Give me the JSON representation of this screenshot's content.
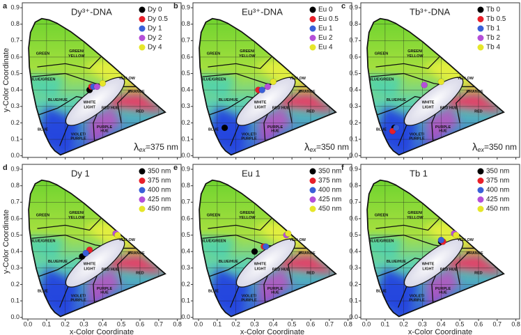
{
  "region_labels": [
    "GREEN",
    "GREEN/",
    "YELLOW",
    "YELLOW",
    "ORANGE",
    "BLUE/GREEN",
    "BLUE/HUE",
    "WHITE",
    "LIGHT",
    "RED HUE",
    "RED",
    "BLUE",
    "VIOLET/",
    "PURPLE",
    "PURPLE",
    "HUE"
  ],
  "chart_data": [
    {
      "type": "scatter",
      "label": "a",
      "title": "Dy³⁺-DNA",
      "ylabel": "y-Color Coordinate",
      "annotation": {
        "symbol": "λ",
        "subscript": "ex",
        "text": "=375 nm"
      },
      "xlim": [
        -0.03,
        0.82
      ],
      "ylim": [
        -0.01,
        0.93
      ],
      "xtick_labels": false,
      "xticks": [
        {
          "value": 0,
          "label": "0.0"
        },
        0.1,
        0.2,
        0.3,
        0.4,
        0.5,
        0.6,
        0.7,
        0.8
      ],
      "yticks": [
        {
          "value": 0,
          "label": "0.0"
        },
        0.1,
        0.2,
        0.3,
        0.4,
        0.5,
        0.6,
        0.7,
        0.8,
        0.9
      ],
      "grid": true,
      "legend": "upper right",
      "series": [
        {
          "name": "Dy 0",
          "color": "#000000",
          "x": [
            0.33
          ],
          "values": [
            0.4
          ]
        },
        {
          "name": "Dy 0.5",
          "color": "#e8202a",
          "x": [
            0.34
          ],
          "values": [
            0.42
          ]
        },
        {
          "name": "Dy 1",
          "color": "#3a5fd8",
          "x": [
            0.35
          ],
          "values": [
            0.42
          ]
        },
        {
          "name": "Dy 2",
          "color": "#b44fd8",
          "x": [
            0.37
          ],
          "values": [
            0.42
          ]
        },
        {
          "name": "Dy 4",
          "color": "#e6e62a",
          "x": [
            0.4
          ],
          "values": [
            0.44
          ]
        }
      ]
    },
    {
      "type": "scatter",
      "label": "b",
      "title": "Eu³⁺-DNA",
      "annotation": {
        "symbol": "λ",
        "subscript": "ex",
        "text": "=350 nm"
      },
      "xlim": [
        -0.03,
        0.82
      ],
      "ylim": [
        -0.01,
        0.93
      ],
      "xtick_labels": false,
      "xticks": [
        {
          "value": 0,
          "label": "0.0"
        },
        0.1,
        0.2,
        0.3,
        0.4,
        0.5,
        0.6,
        0.7,
        0.8
      ],
      "yticks": [
        {
          "value": 0,
          "label": "0.0"
        },
        0.1,
        0.2,
        0.3,
        0.4,
        0.5,
        0.6,
        0.7,
        0.8,
        0.9
      ],
      "grid": true,
      "legend": "upper right",
      "series": [
        {
          "name": "Eu 0",
          "color": "#000000",
          "x": [
            0.14
          ],
          "values": [
            0.17
          ]
        },
        {
          "name": "Eu 0.5",
          "color": "#e8202a",
          "x": [
            0.32
          ],
          "values": [
            0.4
          ]
        },
        {
          "name": "Eu 1",
          "color": "#3a5fd8",
          "x": [
            0.34
          ],
          "values": [
            0.4
          ]
        },
        {
          "name": "Eu 2",
          "color": "#b44fd8",
          "x": [
            0.37
          ],
          "values": [
            0.42
          ]
        },
        {
          "name": "Eu 4",
          "color": "#e6e62a",
          "x": [
            0.4
          ],
          "values": [
            0.45
          ]
        }
      ]
    },
    {
      "type": "scatter",
      "label": "c",
      "title": "Tb³⁺-DNA",
      "annotation": {
        "symbol": "λ",
        "subscript": "ex",
        "text": "=350 nm"
      },
      "xlim": [
        -0.03,
        0.82
      ],
      "ylim": [
        -0.01,
        0.93
      ],
      "xtick_labels": false,
      "xticks": [
        {
          "value": 0,
          "label": "0.0"
        },
        0.1,
        0.2,
        0.3,
        0.4,
        0.5,
        0.6,
        0.7,
        0.8
      ],
      "yticks": [
        {
          "value": 0,
          "label": "0.0"
        },
        0.1,
        0.2,
        0.3,
        0.4,
        0.5,
        0.6,
        0.7,
        0.8,
        0.9
      ],
      "grid": true,
      "legend": "upper right",
      "series": [
        {
          "name": "Tb 0",
          "color": "#000000",
          "x": [
            0.15
          ],
          "values": [
            0.17
          ]
        },
        {
          "name": "Tb 0.5",
          "color": "#e8202a",
          "x": [
            0.14
          ],
          "values": [
            0.15
          ]
        },
        {
          "name": "Tb 1",
          "color": "#3a5fd8",
          "x": [
            0.16
          ],
          "values": [
            0.17
          ]
        },
        {
          "name": "Tb 2",
          "color": "#b44fd8",
          "x": [
            0.31
          ],
          "values": [
            0.43
          ]
        },
        {
          "name": "Tb 4",
          "color": "#e6e62a",
          "x": [
            0.4
          ],
          "values": [
            0.45
          ]
        }
      ]
    },
    {
      "type": "scatter",
      "label": "d",
      "title": "Dy 1",
      "ylabel": "y-Color Coordinate",
      "xlabel": "x-Color Coordinate",
      "xlim": [
        -0.03,
        0.82
      ],
      "ylim": [
        -0.01,
        0.93
      ],
      "xtick_labels": true,
      "xticks": [
        {
          "value": 0,
          "label": "0.0"
        },
        0.1,
        0.2,
        0.3,
        0.4,
        0.5,
        0.6,
        0.7,
        0.8
      ],
      "yticks": [
        {
          "value": 0,
          "label": "0.0"
        },
        0.1,
        0.2,
        0.3,
        0.4,
        0.5,
        0.6,
        0.7,
        0.8,
        0.9
      ],
      "grid": true,
      "legend": "upper right",
      "series": [
        {
          "name": "350 nm",
          "color": "#000000",
          "x": [
            0.29
          ],
          "values": [
            0.37
          ]
        },
        {
          "name": "375 nm",
          "color": "#e8202a",
          "x": [
            0.33
          ],
          "values": [
            0.41
          ]
        },
        {
          "name": "400 nm",
          "color": "#3a5fd8",
          "x": [
            0.31
          ],
          "values": [
            0.39
          ]
        },
        {
          "name": "425 nm",
          "color": "#b44fd8",
          "x": [
            0.47
          ],
          "values": [
            0.51
          ]
        },
        {
          "name": "450 nm",
          "color": "#e6e62a",
          "x": [
            0.48
          ],
          "values": [
            0.5
          ]
        }
      ]
    },
    {
      "type": "scatter",
      "label": "e",
      "title": "Eu 1",
      "xlabel": "x-Color Coordinate",
      "xlim": [
        -0.03,
        0.82
      ],
      "ylim": [
        -0.01,
        0.93
      ],
      "xtick_labels": true,
      "xticks": [
        {
          "value": 0,
          "label": "0.0"
        },
        0.1,
        0.2,
        0.3,
        0.4,
        0.5,
        0.6,
        0.7,
        0.8
      ],
      "yticks": [
        {
          "value": 0,
          "label": "0.0"
        },
        0.1,
        0.2,
        0.3,
        0.4,
        0.5,
        0.6,
        0.7,
        0.8,
        0.9
      ],
      "grid": true,
      "legend": "upper right",
      "series": [
        {
          "name": "350 nm",
          "color": "#000000",
          "x": [
            0.3
          ],
          "values": [
            0.4
          ]
        },
        {
          "name": "375 nm",
          "color": "#e8202a",
          "x": [
            0.35
          ],
          "values": [
            0.43
          ]
        },
        {
          "name": "400 nm",
          "color": "#3a5fd8",
          "x": [
            0.36
          ],
          "values": [
            0.43
          ]
        },
        {
          "name": "425 nm",
          "color": "#b44fd8",
          "x": [
            0.47
          ],
          "values": [
            0.5
          ]
        },
        {
          "name": "450 nm",
          "color": "#e6e62a",
          "x": [
            0.48
          ],
          "values": [
            0.51
          ]
        }
      ]
    },
    {
      "type": "scatter",
      "label": "f",
      "title": "Tb 1",
      "xlabel": "x-Color Coordinate",
      "xlim": [
        -0.03,
        0.82
      ],
      "ylim": [
        -0.01,
        0.93
      ],
      "xtick_labels": true,
      "xticks": [
        {
          "value": 0,
          "label": "0.0"
        },
        0.1,
        0.2,
        0.3,
        0.4,
        0.5,
        0.6,
        0.7,
        0.8
      ],
      "yticks": [
        {
          "value": 0,
          "label": "0.0"
        },
        0.1,
        0.2,
        0.3,
        0.4,
        0.5,
        0.6,
        0.7,
        0.8,
        0.9
      ],
      "grid": true,
      "legend": "upper right",
      "series": [
        {
          "name": "350 nm",
          "color": "#000000",
          "x": [
            0.4
          ],
          "values": [
            0.46
          ]
        },
        {
          "name": "375 nm",
          "color": "#e8202a",
          "x": [
            0.41
          ],
          "values": [
            0.46
          ]
        },
        {
          "name": "400 nm",
          "color": "#3a5fd8",
          "x": [
            0.4
          ],
          "values": [
            0.47
          ]
        },
        {
          "name": "425 nm",
          "color": "#b44fd8",
          "x": [
            0.47
          ],
          "values": [
            0.51
          ]
        },
        {
          "name": "450 nm",
          "color": "#e6e62a",
          "x": [
            0.48
          ],
          "values": [
            0.5
          ]
        }
      ]
    }
  ]
}
